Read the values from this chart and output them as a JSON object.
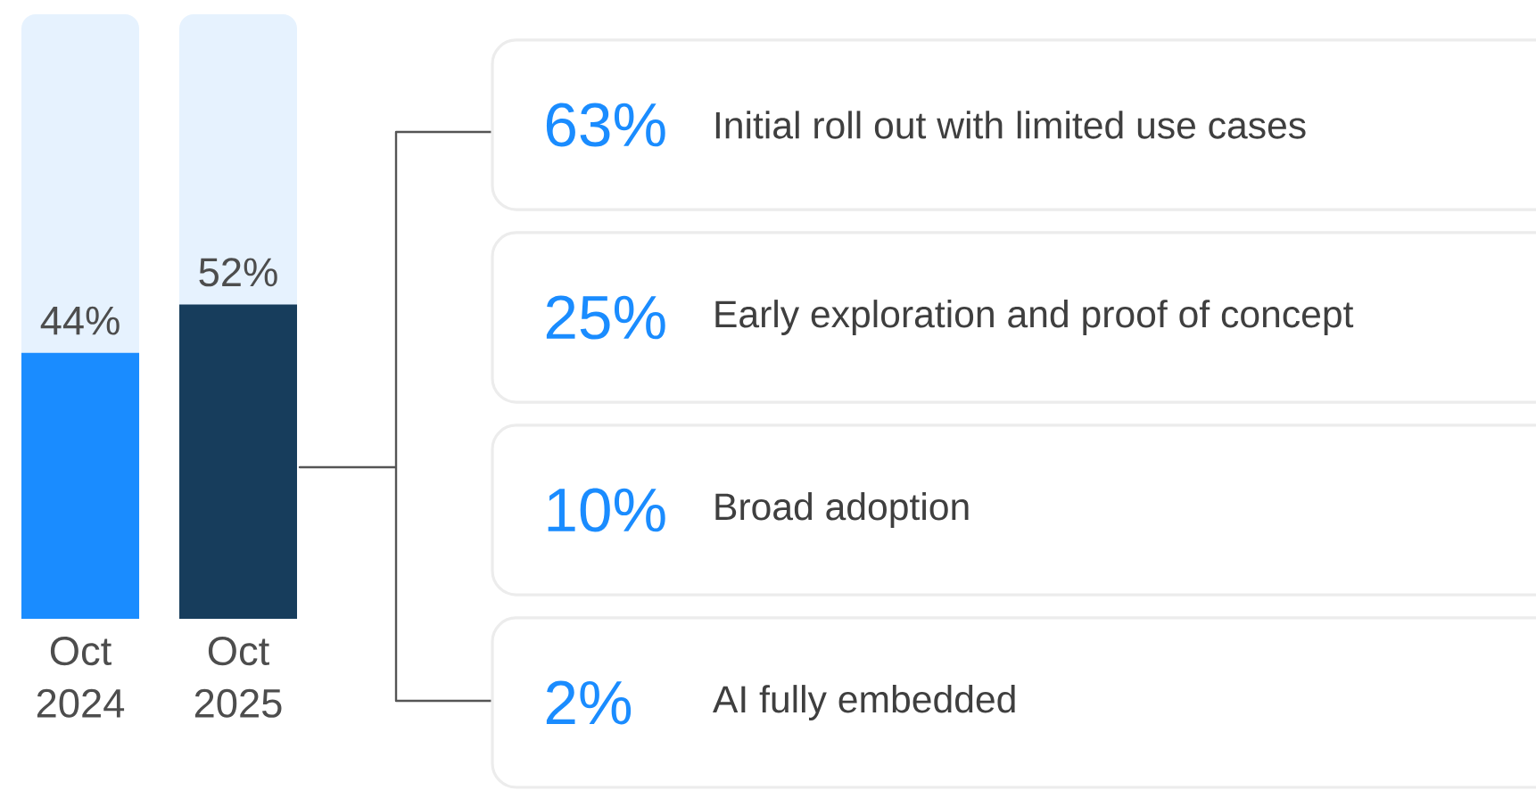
{
  "chart_data": [
    {
      "type": "bar",
      "categories": [
        "Oct 2024",
        "Oct 2025"
      ],
      "values": [
        44,
        52
      ],
      "colors": [
        "#1a8cff",
        "#173d5c"
      ],
      "value_labels": [
        "44%",
        "52%"
      ],
      "ylim": [
        0,
        100
      ],
      "tick_labels": "x"
    },
    {
      "type": "other",
      "categories": [
        "Initial roll out with limited use cases",
        "Early exploration and proof of concept",
        "Broad adoption",
        "AI fully embedded"
      ],
      "value_labels": [
        "63%",
        "25%",
        "10%",
        "2%"
      ],
      "color": "#1a8cff"
    }
  ]
}
